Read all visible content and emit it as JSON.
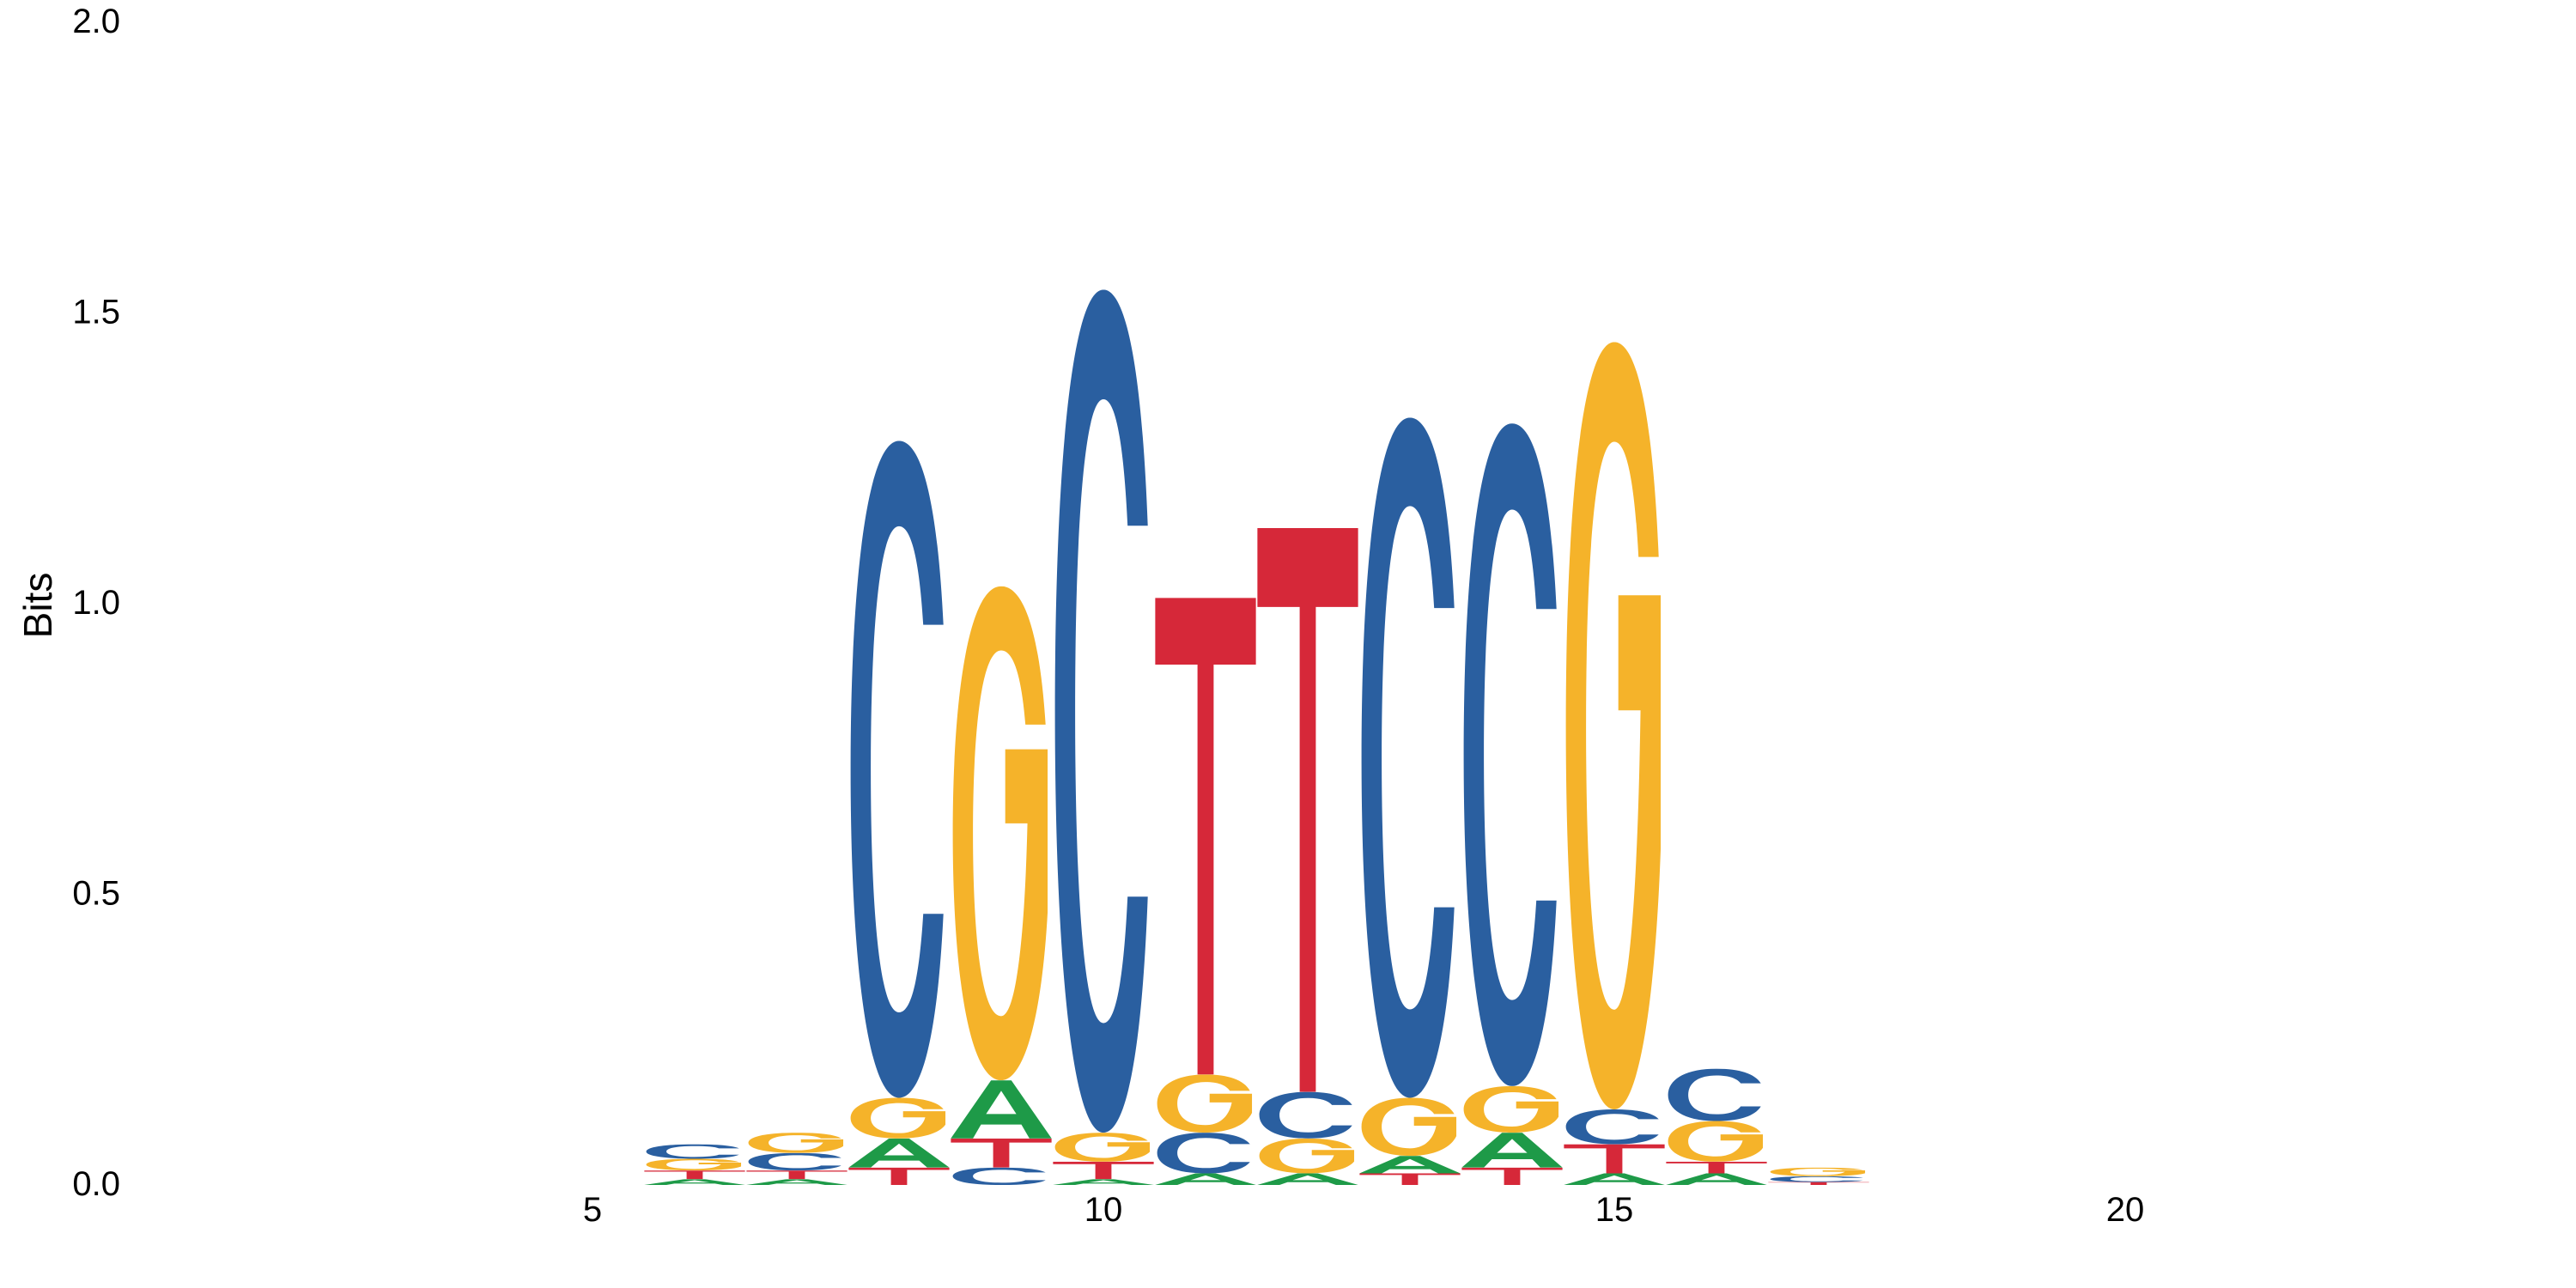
{
  "chart_data": {
    "type": "sequence-logo",
    "ylabel": "Bits",
    "xlabel": "",
    "ylim": [
      0,
      2
    ],
    "yticks": [
      "0.0",
      "0.5",
      "1.0",
      "1.5",
      "2.0"
    ],
    "ytick_values": [
      0,
      0.5,
      1.0,
      1.5,
      2.0
    ],
    "xlim": [
      1,
      25
    ],
    "xticks": [
      "5",
      "10",
      "15",
      "20"
    ],
    "xtick_values": [
      5,
      10,
      15,
      20
    ],
    "colors": {
      "A": "#1e9a48",
      "C": "#2a5fa0",
      "G": "#f5b32a",
      "T": "#d62839"
    },
    "positions": [
      {
        "pos": 6,
        "stack": [
          [
            "A",
            0.01
          ],
          [
            "T",
            0.015
          ],
          [
            "G",
            0.02
          ],
          [
            "C",
            0.025
          ]
        ]
      },
      {
        "pos": 7,
        "stack": [
          [
            "A",
            0.01
          ],
          [
            "T",
            0.015
          ],
          [
            "C",
            0.03
          ],
          [
            "G",
            0.035
          ]
        ]
      },
      {
        "pos": 8,
        "stack": [
          [
            "T",
            0.03
          ],
          [
            "A",
            0.05
          ],
          [
            "G",
            0.07
          ],
          [
            "C",
            1.13
          ]
        ]
      },
      {
        "pos": 9,
        "stack": [
          [
            "C",
            0.03
          ],
          [
            "T",
            0.05
          ],
          [
            "A",
            0.1
          ],
          [
            "G",
            0.85
          ]
        ]
      },
      {
        "pos": 10,
        "stack": [
          [
            "A",
            0.01
          ],
          [
            "T",
            0.03
          ],
          [
            "G",
            0.05
          ],
          [
            "C",
            1.45
          ]
        ]
      },
      {
        "pos": 11,
        "stack": [
          [
            "A",
            0.02
          ],
          [
            "C",
            0.07
          ],
          [
            "G",
            0.1
          ],
          [
            "T",
            0.82
          ]
        ]
      },
      {
        "pos": 12,
        "stack": [
          [
            "A",
            0.02
          ],
          [
            "G",
            0.06
          ],
          [
            "C",
            0.08
          ],
          [
            "T",
            0.97
          ]
        ]
      },
      {
        "pos": 13,
        "stack": [
          [
            "T",
            0.02
          ],
          [
            "A",
            0.03
          ],
          [
            "G",
            0.1
          ],
          [
            "C",
            1.17
          ]
        ]
      },
      {
        "pos": 14,
        "stack": [
          [
            "T",
            0.03
          ],
          [
            "A",
            0.06
          ],
          [
            "G",
            0.08
          ],
          [
            "C",
            1.14
          ]
        ]
      },
      {
        "pos": 15,
        "stack": [
          [
            "A",
            0.02
          ],
          [
            "T",
            0.05
          ],
          [
            "C",
            0.06
          ],
          [
            "G",
            1.32
          ]
        ]
      },
      {
        "pos": 16,
        "stack": [
          [
            "A",
            0.02
          ],
          [
            "T",
            0.02
          ],
          [
            "G",
            0.07
          ],
          [
            "C",
            0.09
          ]
        ]
      },
      {
        "pos": 17,
        "stack": [
          [
            "T",
            0.005
          ],
          [
            "C",
            0.01
          ],
          [
            "G",
            0.015
          ]
        ]
      }
    ]
  }
}
